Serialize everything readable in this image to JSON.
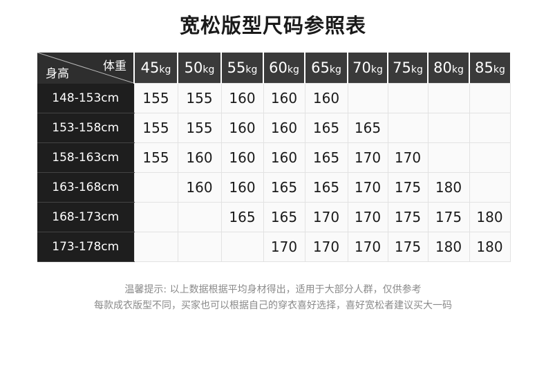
{
  "title": "宽松版型尺码参照表",
  "table": {
    "corner_weight": "体重",
    "corner_height": "身高",
    "weight_unit": "kg",
    "weights": [
      "45",
      "50",
      "55",
      "60",
      "65",
      "70",
      "75",
      "80",
      "85"
    ],
    "rows": [
      {
        "height": "148-153cm",
        "sizes": [
          "155",
          "155",
          "160",
          "160",
          "160",
          "",
          "",
          "",
          ""
        ]
      },
      {
        "height": "153-158cm",
        "sizes": [
          "155",
          "155",
          "160",
          "160",
          "165",
          "165",
          "",
          "",
          ""
        ]
      },
      {
        "height": "158-163cm",
        "sizes": [
          "155",
          "160",
          "160",
          "160",
          "165",
          "170",
          "170",
          "",
          ""
        ]
      },
      {
        "height": "163-168cm",
        "sizes": [
          "",
          "160",
          "160",
          "165",
          "165",
          "170",
          "175",
          "180",
          ""
        ]
      },
      {
        "height": "168-173cm",
        "sizes": [
          "",
          "",
          "165",
          "165",
          "170",
          "170",
          "175",
          "175",
          "180"
        ]
      },
      {
        "height": "173-178cm",
        "sizes": [
          "",
          "",
          "",
          "170",
          "170",
          "170",
          "175",
          "180",
          "180"
        ]
      }
    ]
  },
  "notes": [
    "温馨提示: 以上数据根据平均身材得出，适用于大部分人群，仅供参考",
    "每款成衣版型不同，买家也可以根据自己的穿衣喜好选择，喜好宽松者建议买大一码"
  ]
}
